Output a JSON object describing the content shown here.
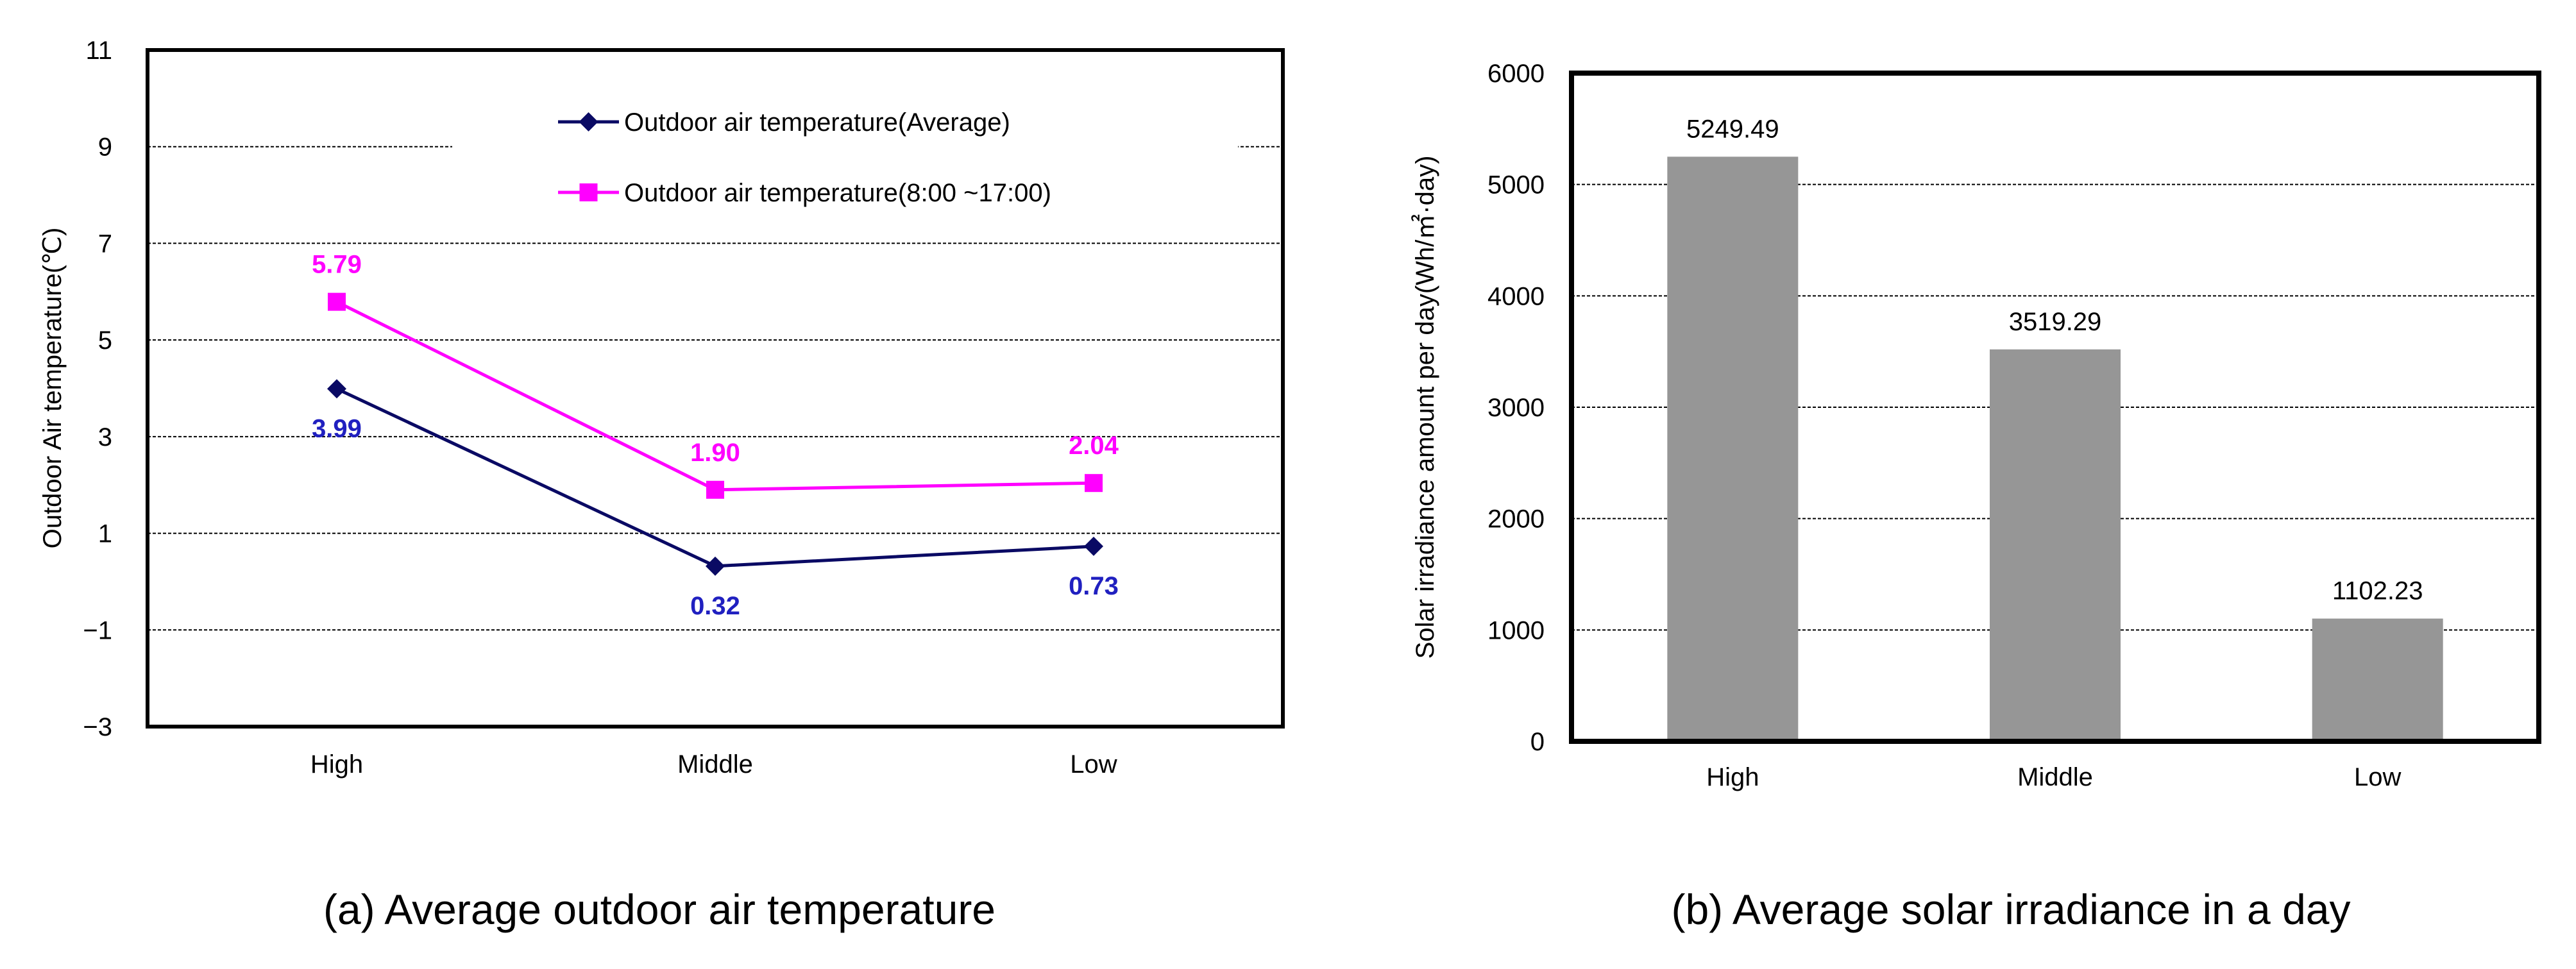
{
  "chart_data": [
    {
      "type": "line",
      "categories": [
        "High",
        "Middle",
        "Low"
      ],
      "ylabel": "Outdoor Air temperature(℃)",
      "ylim": [
        -3,
        11
      ],
      "yticks": [
        "11",
        "9",
        "7",
        "5",
        "3",
        "1",
        "−1",
        "−3"
      ],
      "ytick_values": [
        11,
        9,
        7,
        5,
        3,
        1,
        -1,
        -3
      ],
      "legend_position": "top-right",
      "series": [
        {
          "name": "Outdoor air temperature(Average)",
          "values": [
            3.99,
            0.32,
            0.73
          ],
          "labels": [
            "3.99",
            "0.32",
            "0.73"
          ],
          "color": "#0a0a64",
          "label_color": "#2020c0",
          "marker": "diamond"
        },
        {
          "name": "Outdoor air temperature(8:00 ~17:00)",
          "values": [
            5.79,
            1.9,
            2.04
          ],
          "labels": [
            "5.79",
            "1.90",
            "2.04"
          ],
          "color": "#ff00ff",
          "label_color": "#ff00ff",
          "marker": "square"
        }
      ],
      "caption": "(a) Average outdoor air temperature"
    },
    {
      "type": "bar",
      "categories": [
        "High",
        "Middle",
        "Low"
      ],
      "values": [
        5249.49,
        3519.29,
        1102.23
      ],
      "labels": [
        "5249.49",
        "3519.29",
        "1102.23"
      ],
      "ylabel": "Solar irradiance amount per day(Wh/㎡·day)",
      "ylim": [
        0,
        6000
      ],
      "yticks": [
        "6000",
        "5000",
        "4000",
        "3000",
        "2000",
        "1000",
        "0"
      ],
      "ytick_values": [
        6000,
        5000,
        4000,
        3000,
        2000,
        1000,
        0
      ],
      "bar_color": "#969696",
      "caption": "(b) Average solar irradiance in a day"
    }
  ]
}
